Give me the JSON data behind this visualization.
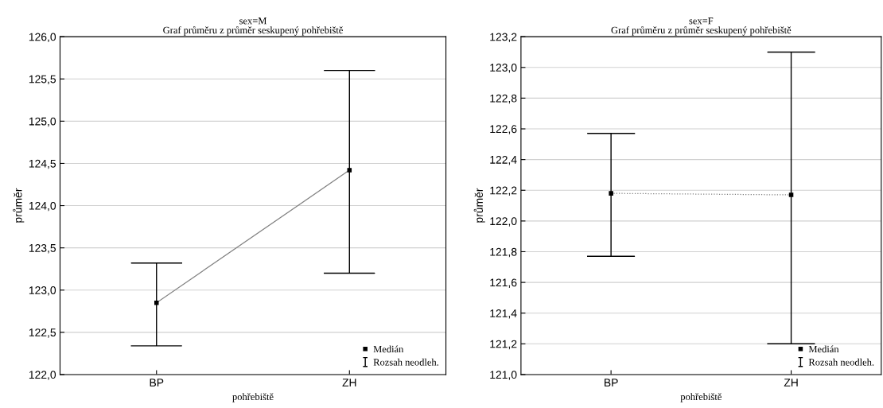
{
  "chart_data": [
    {
      "type": "line",
      "title": "sex=M",
      "subtitle": "Graf průměru z průměr seskupený pohřebiště",
      "xlabel": "pohřebiště",
      "ylabel": "průměr",
      "categories": [
        "BP",
        "ZH"
      ],
      "series": [
        {
          "name": "Medián",
          "color": "#000000",
          "values": [
            122.85,
            124.42
          ],
          "errors": [
            [
              122.34,
              123.32
            ],
            [
              123.2,
              125.6
            ]
          ]
        }
      ],
      "annotations": [
        "Rozsah neodleh."
      ],
      "ylim": [
        122.0,
        126.0
      ],
      "yticks": [
        {
          "value": 122.0,
          "label": "122,0"
        },
        {
          "value": 122.5,
          "label": "122,5"
        },
        {
          "value": 123.0,
          "label": "123,0"
        },
        {
          "value": 123.5,
          "label": "123,5"
        },
        {
          "value": 124.0,
          "label": "124,0"
        },
        {
          "value": 124.5,
          "label": "124,5"
        },
        {
          "value": 125.0,
          "label": "125,0"
        },
        {
          "value": 125.5,
          "label": "125,5"
        },
        {
          "value": 126.0,
          "label": "126,0"
        }
      ],
      "grid": "y",
      "legend": "bottom right",
      "marker": "square",
      "line_style": "solid"
    },
    {
      "type": "line",
      "title": "sex=F",
      "subtitle": "Graf průměru z průměr seskupený pohřebiště",
      "xlabel": "pohřebiště",
      "ylabel": "průměr",
      "categories": [
        "BP",
        "ZH"
      ],
      "series": [
        {
          "name": "Medián",
          "color": "#000000",
          "values": [
            122.18,
            122.17
          ],
          "errors": [
            [
              121.77,
              122.57
            ],
            [
              121.2,
              123.1
            ]
          ]
        }
      ],
      "annotations": [
        "Rozsah neodleh."
      ],
      "ylim": [
        121.0,
        123.2
      ],
      "yticks": [
        {
          "value": 121.0,
          "label": "121,0"
        },
        {
          "value": 121.2,
          "label": "121,2"
        },
        {
          "value": 121.4,
          "label": "121,4"
        },
        {
          "value": 121.6,
          "label": "121,6"
        },
        {
          "value": 121.8,
          "label": "121,8"
        },
        {
          "value": 122.0,
          "label": "122,0"
        },
        {
          "value": 122.2,
          "label": "122,2"
        },
        {
          "value": 122.4,
          "label": "122,4"
        },
        {
          "value": 122.6,
          "label": "122,6"
        },
        {
          "value": 122.8,
          "label": "122,8"
        },
        {
          "value": 123.0,
          "label": "123,0"
        },
        {
          "value": 123.2,
          "label": "123,2"
        }
      ],
      "grid": "y",
      "legend": "bottom right",
      "marker": "square",
      "line_style": "dotted"
    }
  ]
}
